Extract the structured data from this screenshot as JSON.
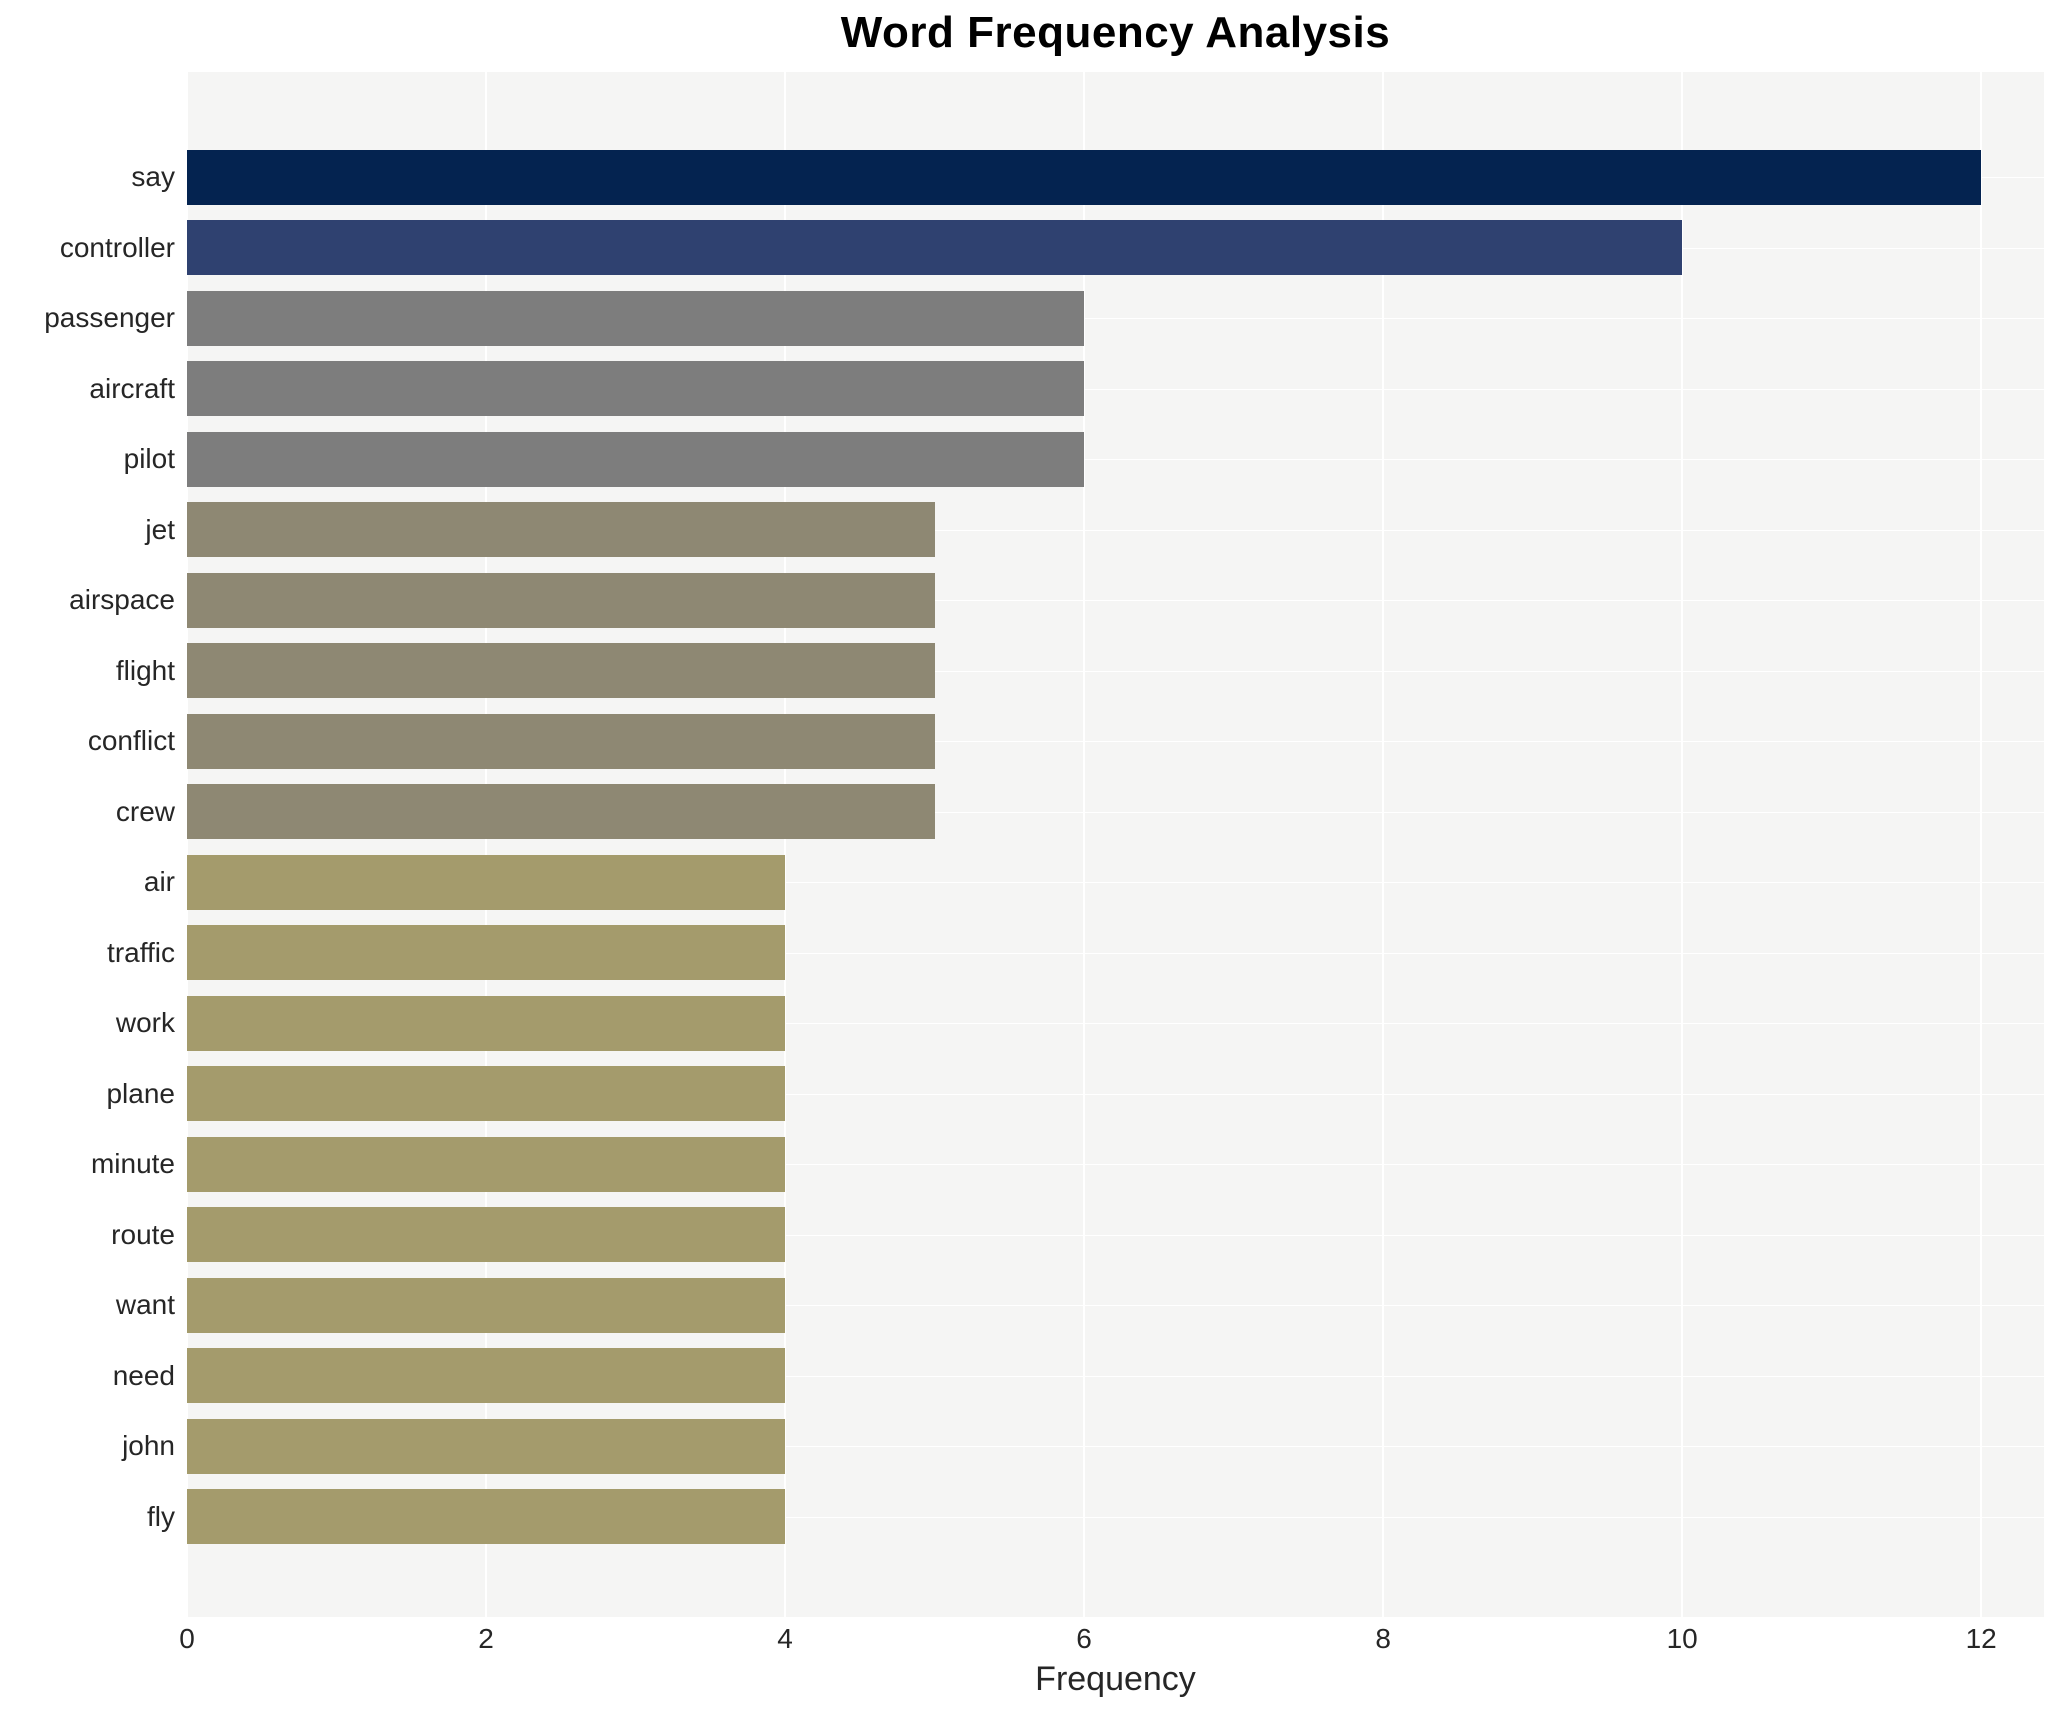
{
  "chart_data": {
    "type": "bar",
    "orientation": "horizontal",
    "title": "Word Frequency Analysis",
    "xlabel": "Frequency",
    "ylabel": "",
    "grid": true,
    "legend": "none",
    "xlim": [
      0,
      12.42
    ],
    "xticks": [
      0,
      2,
      4,
      6,
      8,
      10,
      12
    ],
    "categories": [
      "say",
      "controller",
      "passenger",
      "aircraft",
      "pilot",
      "jet",
      "airspace",
      "flight",
      "conflict",
      "crew",
      "air",
      "traffic",
      "work",
      "plane",
      "minute",
      "route",
      "want",
      "need",
      "john",
      "fly"
    ],
    "values": [
      12,
      10,
      6,
      6,
      6,
      5,
      5,
      5,
      5,
      5,
      4,
      4,
      4,
      4,
      4,
      4,
      4,
      4,
      4,
      4
    ],
    "bar_colors": [
      "#042350",
      "#2f4170",
      "#7d7d7d",
      "#7d7d7d",
      "#7d7d7d",
      "#8e8873",
      "#8e8873",
      "#8e8873",
      "#8e8873",
      "#8e8873",
      "#a49b6c",
      "#a49b6c",
      "#a49b6c",
      "#a49b6c",
      "#a49b6c",
      "#a49b6c",
      "#a49b6c",
      "#a49b6c",
      "#a49b6c",
      "#a49b6c"
    ],
    "colors": {
      "plot_background": "#f5f5f4",
      "figure_background": "#ffffff",
      "gridline": "#ffffff",
      "title_text": "#000000",
      "label_text": "#262626"
    }
  }
}
